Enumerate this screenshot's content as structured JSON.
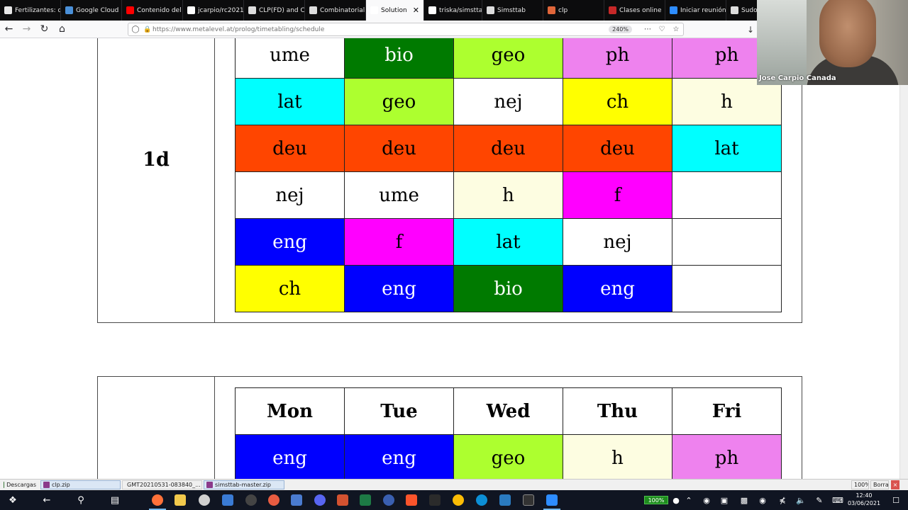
{
  "browser": {
    "tabs": [
      {
        "label": "Fertilizantes: qu",
        "icon": "document-icon",
        "color": "#e8e8e8"
      },
      {
        "label": "Google Cloud P",
        "icon": "globe-icon",
        "color": "#4a90d9"
      },
      {
        "label": "Contenido del c",
        "icon": "youtube-icon",
        "color": "#ff0000"
      },
      {
        "label": "jcarpio/rc2021: l",
        "icon": "github-icon",
        "color": "#ffffff"
      },
      {
        "label": "CLP(FD) and CLP(Z)",
        "icon": "page-icon",
        "color": "#dddddd"
      },
      {
        "label": "Combinatorial Opti",
        "icon": "page-icon",
        "color": "#dddddd"
      },
      {
        "label": "Solution",
        "icon": "page-icon",
        "color": "#ffffff"
      },
      {
        "label": "triska/simsttab",
        "icon": "github-icon",
        "color": "#ffffff"
      },
      {
        "label": "Simsttab",
        "icon": "page-icon",
        "color": "#dddddd"
      },
      {
        "label": "clp",
        "icon": "avatar-icon",
        "color": "#e0663a"
      },
      {
        "label": "Clases online",
        "icon": "house-icon",
        "color": "#c62828"
      },
      {
        "label": "Iniciar reunión -",
        "icon": "zoom-icon",
        "color": "#2d8cff"
      },
      {
        "label": "Sudoku w",
        "icon": "page-icon",
        "color": "#dddddd"
      }
    ],
    "url": "https://www.metalevel.at/prolog/timetabling/schedule",
    "zoom": "240%"
  },
  "webcam": {
    "name": "Jose Carpio Canada"
  },
  "schedule": {
    "class_label": "1d",
    "rows": [
      [
        {
          "text": "ume",
          "bg": "#ffffff",
          "fg": "#000000"
        },
        {
          "text": "bio",
          "bg": "#007a00",
          "fg": "#ffffff"
        },
        {
          "text": "geo",
          "bg": "#adff2f",
          "fg": "#000000"
        },
        {
          "text": "ph",
          "bg": "#ee82ee",
          "fg": "#000000"
        },
        {
          "text": "ph",
          "bg": "#ee82ee",
          "fg": "#000000"
        }
      ],
      [
        {
          "text": "lat",
          "bg": "#00ffff",
          "fg": "#000000"
        },
        {
          "text": "geo",
          "bg": "#adff2f",
          "fg": "#000000"
        },
        {
          "text": "nej",
          "bg": "#ffffff",
          "fg": "#000000"
        },
        {
          "text": "ch",
          "bg": "#ffff00",
          "fg": "#000000"
        },
        {
          "text": "h",
          "bg": "#fdfde1",
          "fg": "#000000"
        }
      ],
      [
        {
          "text": "deu",
          "bg": "#ff4500",
          "fg": "#000000"
        },
        {
          "text": "deu",
          "bg": "#ff4500",
          "fg": "#000000"
        },
        {
          "text": "deu",
          "bg": "#ff4500",
          "fg": "#000000"
        },
        {
          "text": "deu",
          "bg": "#ff4500",
          "fg": "#000000"
        },
        {
          "text": "lat",
          "bg": "#00ffff",
          "fg": "#000000"
        }
      ],
      [
        {
          "text": "nej",
          "bg": "#ffffff",
          "fg": "#000000"
        },
        {
          "text": "ume",
          "bg": "#ffffff",
          "fg": "#000000"
        },
        {
          "text": "h",
          "bg": "#fdfde1",
          "fg": "#000000"
        },
        {
          "text": "f",
          "bg": "#ff00ff",
          "fg": "#000000"
        },
        {
          "text": "",
          "bg": "#ffffff",
          "fg": "#000000"
        }
      ],
      [
        {
          "text": "eng",
          "bg": "#0000ff",
          "fg": "#ffffff"
        },
        {
          "text": "f",
          "bg": "#ff00ff",
          "fg": "#000000"
        },
        {
          "text": "lat",
          "bg": "#00ffff",
          "fg": "#000000"
        },
        {
          "text": "nej",
          "bg": "#ffffff",
          "fg": "#000000"
        },
        {
          "text": "",
          "bg": "#ffffff",
          "fg": "#000000"
        }
      ],
      [
        {
          "text": "ch",
          "bg": "#ffff00",
          "fg": "#000000"
        },
        {
          "text": "eng",
          "bg": "#0000ff",
          "fg": "#ffffff"
        },
        {
          "text": "bio",
          "bg": "#007a00",
          "fg": "#ffffff"
        },
        {
          "text": "eng",
          "bg": "#0000ff",
          "fg": "#ffffff"
        },
        {
          "text": "",
          "bg": "#ffffff",
          "fg": "#000000"
        }
      ]
    ]
  },
  "schedule2": {
    "days": [
      "Mon",
      "Tue",
      "Wed",
      "Thu",
      "Fri"
    ],
    "rows": [
      [
        {
          "text": "eng",
          "bg": "#0000ff",
          "fg": "#ffffff"
        },
        {
          "text": "eng",
          "bg": "#0000ff",
          "fg": "#ffffff"
        },
        {
          "text": "geo",
          "bg": "#adff2f",
          "fg": "#000000"
        },
        {
          "text": "h",
          "bg": "#fdfde1",
          "fg": "#000000"
        },
        {
          "text": "ph",
          "bg": "#ee82ee",
          "fg": "#000000"
        }
      ]
    ]
  },
  "downloads": {
    "title": "Descargas",
    "items": [
      "clp.zip",
      "GMT20210531-083840_...",
      "simsttab-master.zip"
    ],
    "zoom": "100%",
    "clear": "Borrar"
  },
  "taskbar": {
    "battery": "100%",
    "time": "12:40",
    "date": "03/06/2021"
  }
}
